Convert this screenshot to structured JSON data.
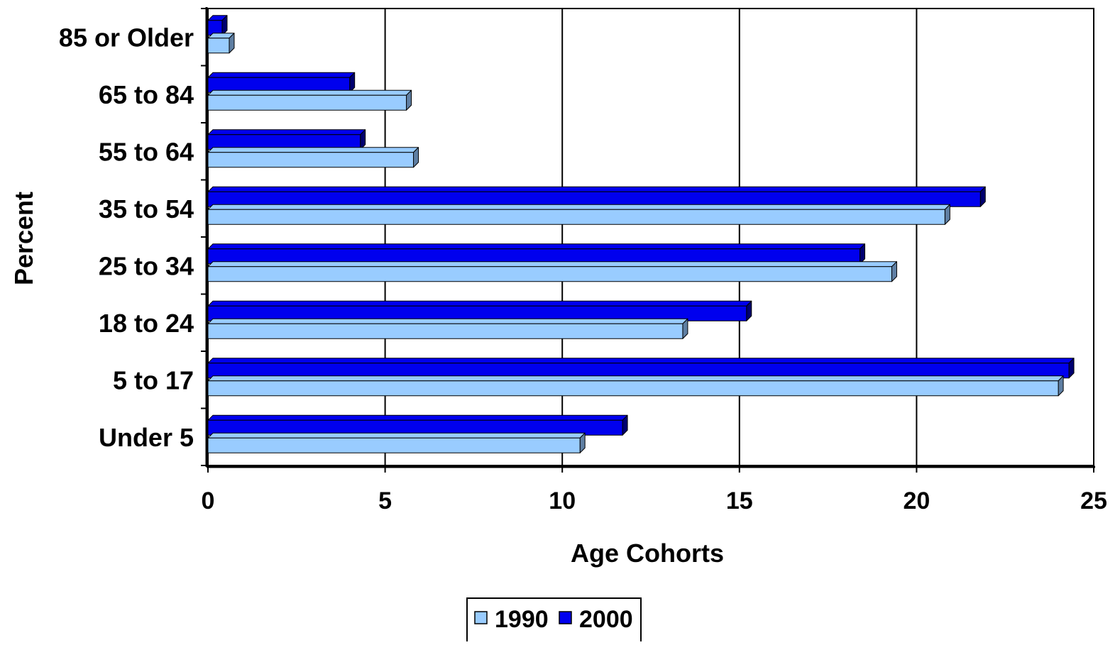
{
  "chart_data": {
    "type": "bar",
    "orientation": "horizontal",
    "style": "3d",
    "categories": [
      "Under 5",
      "5 to 17",
      "18 to 24",
      "25 to 34",
      "35 to 54",
      "55 to 64",
      "65 to 84",
      "85 or Older"
    ],
    "series": [
      {
        "name": "1990",
        "values": [
          10.5,
          24.0,
          13.4,
          19.3,
          20.8,
          5.8,
          5.6,
          0.6
        ]
      },
      {
        "name": "2000",
        "values": [
          11.7,
          24.3,
          15.2,
          18.4,
          21.8,
          4.3,
          4.0,
          0.4
        ]
      }
    ],
    "xlabel": "Age Cohorts",
    "ylabel": "Percent",
    "xlim": [
      0,
      25
    ],
    "xticks": [
      "0",
      "5",
      "10",
      "15",
      "20",
      "25"
    ],
    "grid": "vertical",
    "legend_position": "bottom"
  },
  "colors": {
    "series_1990": "#99ccff",
    "series_1990_dark": "#5f7fa3",
    "series_2000": "#0000ee",
    "series_2000_dark": "#000070",
    "gridline": "#000000",
    "background": "#ffffff"
  }
}
